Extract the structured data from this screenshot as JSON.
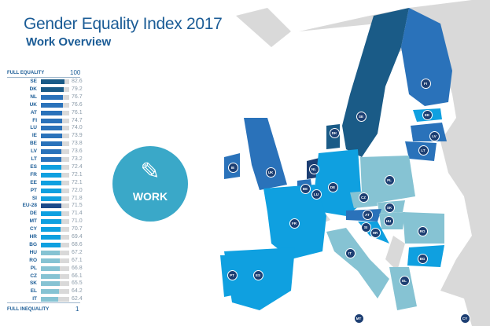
{
  "title": "Gender Equality Index 2017",
  "subtitle": "Work Overview",
  "scale": {
    "top_label": "FULL EQUALITY",
    "top_value": "100",
    "bottom_label": "FULL INEQUALITY",
    "bottom_value": "1"
  },
  "domain_badge": {
    "label": "WORK",
    "icon": "tools-icon",
    "color": "#3aa8c8"
  },
  "colors": {
    "tier1": "#1a5b87",
    "tier2": "#2a72ba",
    "tier3": "#0fa0e0",
    "tier4": "#86c3d3",
    "eu": "#1c4a8a",
    "non_eu": "#d9d9d9",
    "sea": "#ffffff"
  },
  "rows": [
    {
      "code": "SE",
      "value": "82.6",
      "tier": "tier1"
    },
    {
      "code": "DK",
      "value": "79.2",
      "tier": "tier1"
    },
    {
      "code": "NL",
      "value": "76.7",
      "tier": "tier2"
    },
    {
      "code": "UK",
      "value": "76.6",
      "tier": "tier2"
    },
    {
      "code": "AT",
      "value": "76.1",
      "tier": "tier2"
    },
    {
      "code": "FI",
      "value": "74.7",
      "tier": "tier2"
    },
    {
      "code": "LU",
      "value": "74.0",
      "tier": "tier2"
    },
    {
      "code": "IE",
      "value": "73.9",
      "tier": "tier2"
    },
    {
      "code": "BE",
      "value": "73.8",
      "tier": "tier2"
    },
    {
      "code": "LV",
      "value": "73.6",
      "tier": "tier2"
    },
    {
      "code": "LT",
      "value": "73.2",
      "tier": "tier2"
    },
    {
      "code": "ES",
      "value": "72.4",
      "tier": "tier3"
    },
    {
      "code": "FR",
      "value": "72.1",
      "tier": "tier3"
    },
    {
      "code": "EE",
      "value": "72.1",
      "tier": "tier3"
    },
    {
      "code": "PT",
      "value": "72.0",
      "tier": "tier3"
    },
    {
      "code": "SI",
      "value": "71.8",
      "tier": "tier3"
    },
    {
      "code": "EU-28",
      "value": "71.5",
      "tier": "eu"
    },
    {
      "code": "DE",
      "value": "71.4",
      "tier": "tier3"
    },
    {
      "code": "MT",
      "value": "71.0",
      "tier": "tier3"
    },
    {
      "code": "CY",
      "value": "70.7",
      "tier": "tier3"
    },
    {
      "code": "HR",
      "value": "69.4",
      "tier": "tier3"
    },
    {
      "code": "BG",
      "value": "68.6",
      "tier": "tier3"
    },
    {
      "code": "HU",
      "value": "67.2",
      "tier": "tier4"
    },
    {
      "code": "RO",
      "value": "67.1",
      "tier": "tier4"
    },
    {
      "code": "PL",
      "value": "66.8",
      "tier": "tier4"
    },
    {
      "code": "CZ",
      "value": "66.1",
      "tier": "tier4"
    },
    {
      "code": "SK",
      "value": "65.5",
      "tier": "tier4"
    },
    {
      "code": "EL",
      "value": "64.2",
      "tier": "tier4"
    },
    {
      "code": "IT",
      "value": "62.4",
      "tier": "tier4"
    }
  ],
  "map_labels": [
    "FI",
    "SE",
    "EE",
    "LV",
    "LT",
    "DK",
    "IE",
    "UK",
    "NL",
    "BE",
    "LU",
    "DE",
    "PL",
    "CZ",
    "SK",
    "AT",
    "HU",
    "SI",
    "HR",
    "RO",
    "FR",
    "BG",
    "IT",
    "PT",
    "ES",
    "EL",
    "MT",
    "CY"
  ]
}
